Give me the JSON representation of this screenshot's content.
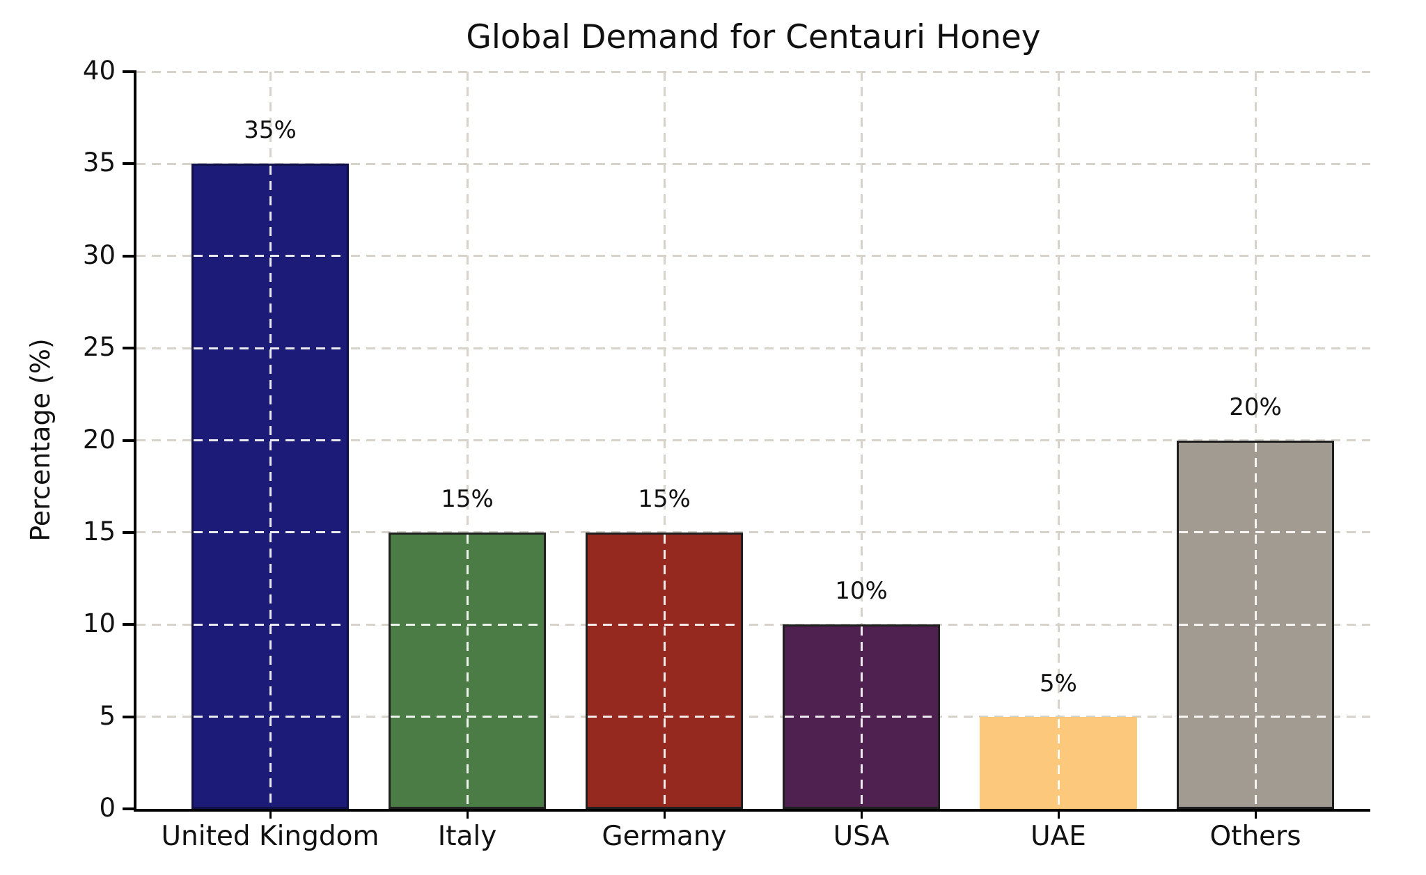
{
  "title": "Global Demand for Centauri Honey",
  "chart_data": {
    "type": "bar",
    "title": "Global Demand for Centauri Honey",
    "xlabel": "",
    "ylabel": "Percentage (%)",
    "categories": [
      "United Kingdom",
      "Italy",
      "Germany",
      "USA",
      "UAE",
      "Others"
    ],
    "values": [
      35,
      15,
      15,
      10,
      5,
      20
    ],
    "bar_labels": [
      "35%",
      "15%",
      "15%",
      "10%",
      "5%",
      "20%"
    ],
    "bar_colors": [
      "#1c1c78",
      "#4c7c45",
      "#96291f",
      "#4e2150",
      "#fcc87c",
      "#a19b92"
    ],
    "bar_edge_colors": [
      "#10104a",
      "#1f1f1f",
      "#1f1f1f",
      "#1f1f1f",
      "#fcc87c",
      "#1f1f1f"
    ],
    "ylim": [
      0,
      40
    ],
    "yticks": [
      0,
      5,
      10,
      15,
      20,
      25,
      30,
      35,
      40
    ],
    "grid": "dashed",
    "gridline_color": "#d8d3ca",
    "grid_over_bar_color": "rgba(255,255,255,0.9)",
    "axis_color": "#000000",
    "background_color": "#ffffff",
    "legend_position": "none"
  }
}
